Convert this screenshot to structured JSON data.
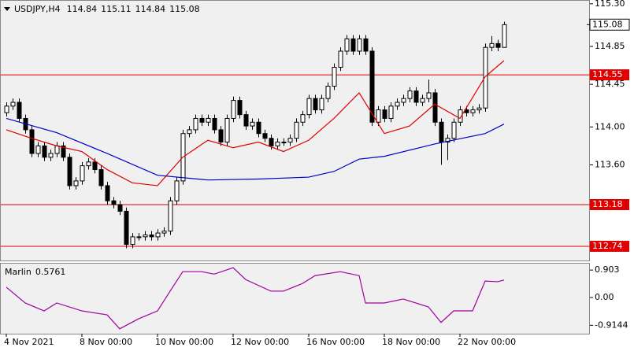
{
  "chart_data": {
    "type": "candlestick",
    "title": "USDJPY,H4",
    "categories": [
      "4 Nov 2021",
      null,
      null,
      null,
      null,
      null,
      null,
      null,
      null,
      null,
      null,
      null,
      "8 Nov 00:00",
      null,
      null,
      null,
      null,
      null,
      null,
      null,
      null,
      null,
      null,
      null,
      "10 Nov 00:00",
      null,
      null,
      null,
      null,
      null,
      null,
      null,
      null,
      null,
      null,
      null,
      "12 Nov 00:00",
      null,
      null,
      null,
      null,
      null,
      null,
      null,
      null,
      null,
      null,
      null,
      "16 Nov 00:00",
      null,
      null,
      null,
      null,
      null,
      null,
      null,
      null,
      null,
      null,
      null,
      "18 Nov 00:00",
      null,
      null,
      null,
      null,
      null,
      null,
      null,
      null,
      null,
      null,
      null,
      "22 Nov 00:00",
      null,
      null,
      null,
      null,
      null,
      null,
      null
    ],
    "open": [
      114.15,
      114.22,
      114.26,
      114.09,
      113.97,
      113.72,
      113.8,
      113.68,
      113.72,
      113.8,
      113.68,
      113.38,
      113.43,
      113.59,
      113.63,
      113.55,
      113.38,
      113.22,
      113.18,
      113.11,
      112.76,
      112.84,
      112.84,
      112.86,
      112.84,
      112.88,
      112.9,
      113.22,
      113.43,
      113.93,
      113.97,
      114.09,
      114.05,
      114.09,
      113.97,
      113.84,
      114.09,
      114.28,
      114.13,
      114.01,
      114.05,
      113.93,
      113.88,
      113.8,
      113.84,
      113.84,
      113.88,
      114.05,
      114.13,
      114.3,
      114.18,
      114.3,
      114.43,
      114.63,
      114.8,
      114.93,
      114.8,
      114.93,
      114.8,
      114.05,
      114.18,
      114.09,
      114.22,
      114.26,
      114.3,
      114.38,
      114.26,
      114.3,
      114.36,
      114.05,
      113.84,
      113.88,
      114.05,
      114.18,
      114.15,
      114.18,
      114.2,
      114.84,
      114.88,
      114.84
    ],
    "high": [
      114.26,
      114.3,
      114.3,
      114.13,
      114.01,
      113.84,
      113.84,
      113.76,
      113.84,
      113.84,
      113.72,
      113.47,
      113.63,
      113.67,
      113.67,
      113.59,
      113.42,
      113.26,
      113.22,
      113.15,
      112.88,
      112.88,
      112.9,
      112.9,
      112.92,
      112.94,
      113.26,
      113.47,
      113.97,
      114.01,
      114.13,
      114.13,
      114.13,
      114.13,
      114.01,
      114.13,
      114.32,
      114.32,
      114.17,
      114.09,
      114.09,
      113.97,
      113.92,
      113.88,
      113.88,
      113.92,
      114.09,
      114.17,
      114.34,
      114.34,
      114.34,
      114.47,
      114.67,
      114.84,
      114.97,
      114.97,
      114.97,
      114.97,
      114.84,
      114.22,
      114.22,
      114.26,
      114.3,
      114.34,
      114.42,
      114.42,
      114.34,
      114.5,
      114.4,
      114.09,
      113.92,
      114.09,
      114.22,
      114.22,
      114.22,
      114.24,
      114.88,
      114.96,
      114.92,
      115.11
    ],
    "low": [
      114.11,
      114.18,
      114.05,
      113.93,
      113.68,
      113.68,
      113.64,
      113.64,
      113.68,
      113.64,
      113.34,
      113.34,
      113.39,
      113.55,
      113.51,
      113.34,
      113.18,
      113.14,
      113.07,
      112.72,
      112.72,
      112.8,
      112.8,
      112.8,
      112.8,
      112.84,
      112.86,
      113.18,
      113.39,
      113.89,
      113.93,
      114.01,
      114.01,
      113.93,
      113.8,
      113.8,
      114.05,
      114.09,
      113.97,
      113.97,
      113.89,
      113.84,
      113.76,
      113.76,
      113.8,
      113.8,
      113.84,
      114.01,
      114.09,
      114.14,
      114.14,
      114.26,
      114.39,
      114.59,
      114.76,
      114.76,
      114.76,
      114.76,
      114.01,
      114.01,
      114.05,
      114.05,
      114.18,
      114.22,
      114.26,
      114.22,
      114.22,
      114.26,
      114.01,
      113.6,
      113.65,
      113.84,
      114.01,
      114.11,
      114.11,
      114.14,
      114.16,
      114.8,
      114.8,
      114.84
    ],
    "close": [
      114.22,
      114.26,
      114.09,
      113.97,
      113.72,
      113.8,
      113.68,
      113.72,
      113.8,
      113.68,
      113.38,
      113.43,
      113.59,
      113.63,
      113.55,
      113.38,
      113.22,
      113.18,
      113.11,
      112.76,
      112.84,
      112.84,
      112.86,
      112.84,
      112.88,
      112.9,
      113.22,
      113.43,
      113.93,
      113.97,
      114.09,
      114.05,
      114.09,
      113.97,
      113.84,
      114.09,
      114.28,
      114.13,
      114.01,
      114.05,
      113.93,
      113.88,
      113.8,
      113.84,
      113.84,
      113.88,
      114.05,
      114.13,
      114.3,
      114.18,
      114.3,
      114.43,
      114.63,
      114.8,
      114.93,
      114.8,
      114.93,
      114.8,
      114.05,
      114.18,
      114.09,
      114.22,
      114.26,
      114.3,
      114.38,
      114.26,
      114.3,
      114.36,
      114.05,
      113.84,
      113.88,
      114.05,
      114.18,
      114.15,
      114.18,
      114.2,
      114.84,
      114.88,
      114.84,
      115.08
    ],
    "ylim": [
      112.59,
      115.34
    ],
    "yticks": [
      {
        "value": 115.3,
        "label": "115.30"
      },
      114.85,
      114.45,
      {
        "value": 114.0,
        "label": "114.00"
      },
      {
        "value": 113.6,
        "label": "113.60"
      }
    ],
    "levels": [
      114.55,
      113.18,
      112.74
    ],
    "level_color": "#e00000",
    "overlays": [
      {
        "color": "#e00000",
        "x": [
          0,
          4,
          8,
          12,
          16,
          20,
          24,
          28,
          32,
          36,
          40,
          44,
          48,
          52,
          56,
          60,
          64,
          68,
          72,
          76,
          79
        ],
        "values": [
          113.97,
          113.88,
          113.8,
          113.74,
          113.55,
          113.41,
          113.38,
          113.68,
          113.86,
          113.78,
          113.84,
          113.74,
          113.86,
          114.09,
          114.36,
          113.93,
          114.01,
          114.24,
          114.09,
          114.53,
          114.7
        ]
      },
      {
        "color": "#0000c8",
        "x": [
          0,
          8,
          16,
          24,
          32,
          40,
          48,
          52,
          56,
          60,
          68,
          76,
          79
        ],
        "values": [
          114.09,
          113.94,
          113.72,
          113.49,
          113.44,
          113.45,
          113.47,
          113.53,
          113.66,
          113.69,
          113.82,
          113.93,
          114.03
        ]
      }
    ],
    "indicator": {
      "name": "Marlin",
      "color": "#a000a0",
      "x": [
        0,
        3,
        6,
        8,
        12,
        16,
        18,
        21,
        24,
        26,
        28,
        31,
        33,
        36,
        38,
        42,
        44,
        47,
        49,
        53,
        56,
        57,
        60,
        63,
        67,
        69,
        71,
        74,
        76,
        78,
        79
      ],
      "values": [
        0.34,
        -0.18,
        -0.44,
        -0.18,
        -0.44,
        -0.57,
        -1.03,
        -0.7,
        -0.44,
        0.21,
        0.85,
        0.85,
        0.77,
        0.98,
        0.59,
        0.21,
        0.21,
        0.46,
        0.72,
        0.85,
        0.72,
        -0.18,
        -0.18,
        -0.05,
        -0.31,
        -0.82,
        -0.44,
        -0.44,
        0.54,
        0.52,
        0.5761
      ],
      "ylim": [
        -1.19,
        1.14
      ],
      "yticks": [
        0.903,
        {
          "value": 0,
          "label": "0.00"
        },
        -0.9144
      ]
    }
  }
}
